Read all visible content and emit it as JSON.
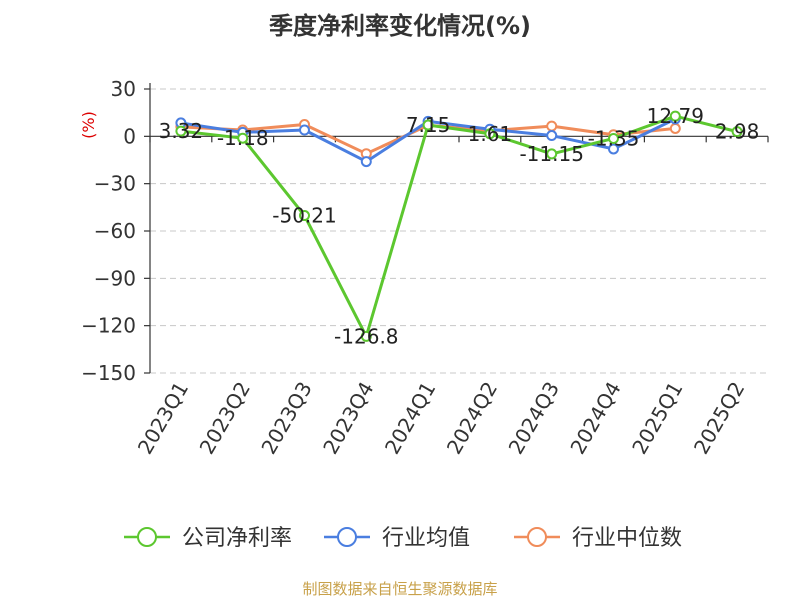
{
  "chart_data": {
    "type": "line",
    "title": "季度净利率变化情况(%)",
    "ylabel": "(%)",
    "ylim": [
      -150,
      30
    ],
    "yticks": [
      30,
      0,
      -30,
      -60,
      -90,
      -120,
      -150
    ],
    "grid": true,
    "legend_position": "bottom",
    "categories": [
      "2023Q1",
      "2023Q2",
      "2023Q3",
      "2023Q4",
      "2024Q1",
      "2024Q2",
      "2024Q3",
      "2024Q4",
      "2025Q1",
      "2025Q2"
    ],
    "series": [
      {
        "name": "公司净利率",
        "color": "#5cc72f",
        "values": [
          3.32,
          -1.18,
          -50.21,
          -126.8,
          7.15,
          1.61,
          -11.15,
          -1.35,
          12.79,
          2.98
        ],
        "labels": [
          "3.32",
          "-1.18",
          "-50.21",
          "-126.8",
          "7.15",
          "1.61",
          "-11.15",
          "-1.35",
          "12.79",
          "2.98"
        ]
      },
      {
        "name": "行业均值",
        "color": "#4a7ee0",
        "values": [
          8.5,
          2.5,
          4.0,
          -16.0,
          9.5,
          4.5,
          0.5,
          -8.0,
          11.0,
          null
        ]
      },
      {
        "name": "行业中位数",
        "color": "#f08c5a",
        "values": [
          6.0,
          4.0,
          7.5,
          -11.0,
          7.0,
          3.5,
          6.5,
          1.0,
          5.0,
          null
        ]
      }
    ]
  },
  "footer": "制图数据来自恒生聚源数据库"
}
